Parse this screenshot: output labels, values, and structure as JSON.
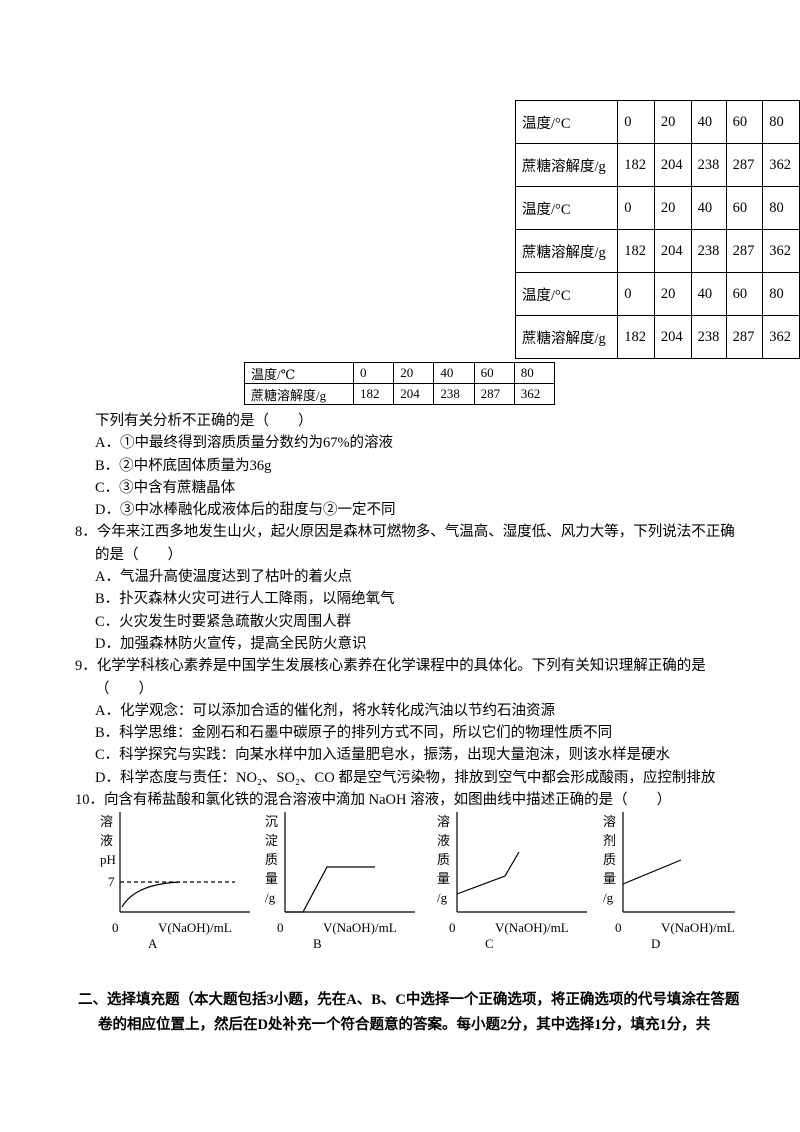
{
  "tables": [
    {
      "rows": [
        [
          "温度/°C",
          "0",
          "20",
          "40",
          "60",
          "80"
        ],
        [
          "蔗糖溶解度/g",
          "182",
          "204",
          "238",
          "287",
          "362"
        ],
        [
          "温度/°C",
          "0",
          "20",
          "40",
          "60",
          "80"
        ],
        [
          "蔗糖溶解度/g",
          "182",
          "204",
          "238",
          "287",
          "362"
        ],
        [
          "温度/°C",
          "0",
          "20",
          "40",
          "60",
          "80"
        ],
        [
          "蔗糖溶解度/g",
          "182",
          "204",
          "238",
          "287",
          "362"
        ]
      ]
    },
    {
      "rows": [
        [
          "温度/℃",
          "0",
          "20",
          "40",
          "60",
          "80"
        ],
        [
          "蔗糖溶解度/g",
          "182",
          "204",
          "238",
          "287",
          "362"
        ]
      ]
    }
  ],
  "questions": [
    {
      "stem": "下列有关分析不正确的是（　　）",
      "options": [
        "A．①中最终得到溶质质量分数约为67%的溶液",
        "B．②中杯底固体质量为36g",
        "C．③中含有蔗糖晶体",
        "D．③中冰棒融化成液体后的甜度与②一定不同"
      ]
    },
    {
      "number": "8．",
      "stem": "今年来江西多地发生山火，起火原因是森林可燃物多、气温高、湿度低、风力大等，下列说法不正确的是（　　）",
      "options": [
        "A．气温升高使温度达到了枯叶的着火点",
        "B．扑灭森林火灾可进行人工降雨，以隔绝氧气",
        "C．火灾发生时要紧急疏散火灾周围人群",
        "D．加强森林防火宣传，提高全民防火意识"
      ]
    },
    {
      "number": "9．",
      "stem": "化学学科核心素养是中国学生发展核心素养在化学课程中的具体化。下列有关知识理解正确的是（　　）",
      "options": [
        "A．化学观念：可以添加合适的催化剂，将水转化成汽油以节约石油资源",
        "B．科学思维：金刚石和石墨中碳原子的排列方式不同，所以它们的物理性质不同",
        "C．科学探究与实践：向某水样中加入适量肥皂水，振荡，出现大量泡沫，则该水样是硬水",
        "D．科学态度与责任：NO₂、SO₂、CO 都是空气污染物，排放到空气中都会形成酸雨，应控制排放"
      ]
    },
    {
      "number": "10．",
      "stem": "向含有稀盐酸和氯化铁的混合溶液中滴加 NaOH 溶液，如图曲线中描述正确的是（　　）",
      "options": []
    }
  ],
  "graphs": [
    {
      "y_label": "溶液pH",
      "tick": "7",
      "origin": "0",
      "x_label": "V(NaOH)/mL",
      "caption": "A"
    },
    {
      "y_label": "沉淀质量/g",
      "origin": "0",
      "x_label": "V(NaOH)/mL",
      "caption": "B"
    },
    {
      "y_label": "溶液质量/g",
      "origin": "0",
      "x_label": "V(NaOH)/mL",
      "caption": "C"
    },
    {
      "y_label": "溶剂质量/g",
      "origin": "0",
      "x_label": "V(NaOH)/mL",
      "caption": "D"
    }
  ],
  "section": {
    "title": "二、选择填充题（本大题包括3小题，先在A、B、C中选择一个正确选项，将正确选项的代号填涂在答题卷的相应位置上，然后在D处补充一个符合题意的答案。每小题2分，其中选择1分，填充1分，共"
  }
}
